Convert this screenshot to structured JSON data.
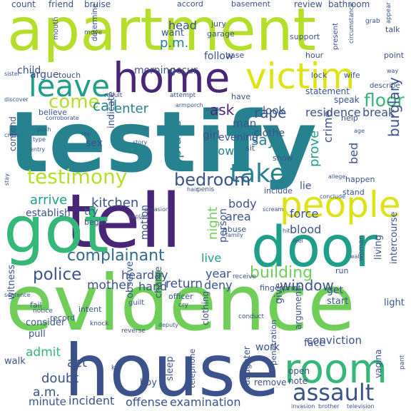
{
  "palette": {
    "dark_purple": "#482576",
    "indigo": "#3b528b",
    "blue": "#31688e",
    "teal": "#26828e",
    "sea": "#1f9e89",
    "green": "#35b779",
    "lime": "#6ece58",
    "yellow_green": "#b5de2b",
    "yellow": "#dde318"
  },
  "words": [
    {
      "text": "testify"
    },
    {
      "text": "evidence"
    },
    {
      "text": "house"
    },
    {
      "text": "tell"
    },
    {
      "text": "apartment"
    },
    {
      "text": "got"
    },
    {
      "text": "door"
    },
    {
      "text": "home"
    },
    {
      "text": "victim"
    },
    {
      "text": "people"
    },
    {
      "text": "room"
    },
    {
      "text": "leave"
    },
    {
      "text": "take"
    },
    {
      "text": "testimony"
    },
    {
      "text": "assault"
    },
    {
      "text": "complainant"
    },
    {
      "text": "police"
    },
    {
      "text": "come"
    },
    {
      "text": "floor"
    },
    {
      "text": "bedroom"
    },
    {
      "text": "building"
    },
    {
      "text": "window"
    },
    {
      "text": "rape"
    },
    {
      "text": "call"
    },
    {
      "text": "burglary"
    },
    {
      "text": "enter"
    },
    {
      "text": "ask"
    },
    {
      "text": "say"
    },
    {
      "text": "place"
    },
    {
      "text": "kitchen"
    },
    {
      "text": "night"
    },
    {
      "text": "arrive"
    },
    {
      "text": "know"
    },
    {
      "text": "prove"
    },
    {
      "text": "a.m."
    },
    {
      "text": "p.m."
    },
    {
      "text": "return"
    },
    {
      "text": "mother"
    },
    {
      "text": "head"
    },
    {
      "text": "hand"
    },
    {
      "text": "day"
    },
    {
      "text": "hear"
    },
    {
      "text": "body"
    },
    {
      "text": "live"
    },
    {
      "text": "area"
    },
    {
      "text": "force"
    },
    {
      "text": "blood"
    },
    {
      "text": "act"
    },
    {
      "text": "doubt"
    },
    {
      "text": "admit"
    },
    {
      "text": "year"
    },
    {
      "text": "deny"
    },
    {
      "text": "incident"
    },
    {
      "text": "offense"
    },
    {
      "text": "examination"
    },
    {
      "text": "minute"
    },
    {
      "text": "conviction"
    },
    {
      "text": "residence"
    },
    {
      "text": "break"
    },
    {
      "text": "crime"
    },
    {
      "text": "bed"
    },
    {
      "text": "look"
    },
    {
      "text": "man"
    },
    {
      "text": "girl"
    },
    {
      "text": "clothe"
    },
    {
      "text": "evening"
    },
    {
      "text": "morning"
    },
    {
      "text": "sex"
    },
    {
      "text": "argue"
    },
    {
      "text": "child"
    },
    {
      "text": "follow"
    },
    {
      "text": "occur"
    },
    {
      "text": "want"
    },
    {
      "text": "indicate"
    },
    {
      "text": "establish"
    },
    {
      "text": "try"
    },
    {
      "text": "motion"
    },
    {
      "text": "person"
    },
    {
      "text": "lie"
    },
    {
      "text": "get"
    },
    {
      "text": "give"
    },
    {
      "text": "work"
    },
    {
      "text": "face"
    },
    {
      "text": "start"
    },
    {
      "text": "light"
    },
    {
      "text": "intercourse"
    },
    {
      "text": "living"
    },
    {
      "text": "charge"
    },
    {
      "text": "observe"
    },
    {
      "text": "witness"
    },
    {
      "text": "walk"
    },
    {
      "text": "boy"
    },
    {
      "text": "sleep"
    },
    {
      "text": "pull"
    },
    {
      "text": "consider"
    },
    {
      "text": "open"
    },
    {
      "text": "note"
    },
    {
      "text": "remove"
    },
    {
      "text": "daughter"
    },
    {
      "text": "clothing"
    },
    {
      "text": "telephone"
    },
    {
      "text": "argument"
    },
    {
      "text": "vagina"
    },
    {
      "text": "penetration"
    },
    {
      "text": "count"
    },
    {
      "text": "friend"
    },
    {
      "text": "bruise"
    },
    {
      "text": "accord"
    },
    {
      "text": "basement"
    },
    {
      "text": "review"
    },
    {
      "text": "bathroom"
    },
    {
      "text": "jury"
    },
    {
      "text": "garage"
    },
    {
      "text": "support"
    },
    {
      "text": "talk"
    },
    {
      "text": "mouth"
    },
    {
      "text": "move"
    },
    {
      "text": "determine"
    },
    {
      "text": "touch"
    },
    {
      "text": "base"
    },
    {
      "text": "hour"
    },
    {
      "text": "point"
    },
    {
      "text": "lock"
    },
    {
      "text": "wife"
    },
    {
      "text": "statement"
    },
    {
      "text": "speak"
    },
    {
      "text": "help"
    },
    {
      "text": "result"
    },
    {
      "text": "attempt"
    },
    {
      "text": "believe"
    },
    {
      "text": "have"
    },
    {
      "text": "describe"
    },
    {
      "text": "contend"
    },
    {
      "text": "include"
    },
    {
      "text": "happen"
    },
    {
      "text": "stand"
    },
    {
      "text": "show"
    },
    {
      "text": "sit"
    },
    {
      "text": "present"
    },
    {
      "text": "circumstance"
    },
    {
      "text": "grab"
    },
    {
      "text": "appear"
    },
    {
      "text": "record"
    },
    {
      "text": "intent"
    },
    {
      "text": "fail"
    },
    {
      "text": "guilt"
    },
    {
      "text": "officer"
    },
    {
      "text": "run"
    },
    {
      "text": "abuse"
    },
    {
      "text": "fingerprint"
    },
    {
      "text": "begin"
    },
    {
      "text": "woman"
    },
    {
      "text": "cry"
    },
    {
      "text": "receive"
    },
    {
      "text": "conduct"
    },
    {
      "text": "reverse"
    },
    {
      "text": "knock"
    },
    {
      "text": "key"
    },
    {
      "text": "notice"
    },
    {
      "text": "sister"
    },
    {
      "text": "cross"
    },
    {
      "text": "push"
    },
    {
      "text": "type"
    },
    {
      "text": "entry"
    },
    {
      "text": "explain"
    },
    {
      "text": "penis"
    },
    {
      "text": "hair"
    },
    {
      "text": "pant"
    },
    {
      "text": "television"
    },
    {
      "text": "brother"
    },
    {
      "text": "invasion"
    },
    {
      "text": "family"
    },
    {
      "text": "feel"
    },
    {
      "text": "wall"
    },
    {
      "text": "scream"
    },
    {
      "text": "occasion"
    },
    {
      "text": "conclude"
    },
    {
      "text": "rap"
    },
    {
      "text": "allege"
    },
    {
      "text": "age"
    },
    {
      "text": "stay"
    },
    {
      "text": "porch"
    },
    {
      "text": "mark"
    },
    {
      "text": "arm"
    },
    {
      "text": "corroborate"
    },
    {
      "text": "discover"
    },
    {
      "text": "story"
    },
    {
      "text": "sentence"
    },
    {
      "text": "way"
    },
    {
      "text": "hit"
    },
    {
      "text": "deputy"
    }
  ]
}
